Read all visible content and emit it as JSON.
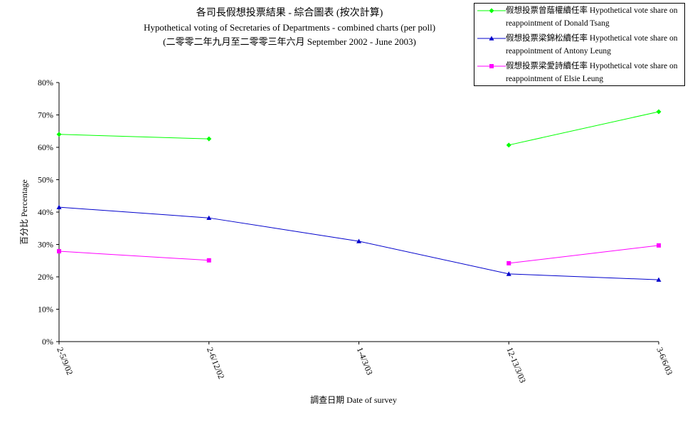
{
  "chart_data": {
    "type": "line",
    "title": "各司長假想投票結果 - 綜合圖表 (按次計算)",
    "subtitle": "Hypothetical voting of Secretaries of Departments - combined charts (per poll)",
    "subtitle2": "(二零零二年九月至二零零三年六月 September 2002 - June 2003)",
    "x_label": "調查日期 Date of survey",
    "y_label": "百分比 Percentage",
    "categories": [
      "2-5/9/02",
      "2-6/12/02",
      "1-4/3/03",
      "12-13/3/03",
      "3-6/6/03"
    ],
    "series": [
      {
        "name": "假想投票曾蔭權續任率 Hypothetical vote share on reappointment of Donald Tsang",
        "color": "#00ff00",
        "marker": "diamond",
        "values": [
          64.0,
          62.6,
          null,
          60.7,
          71.0
        ]
      },
      {
        "name": "假想投票梁錦松續任率 Hypothetical vote share on reappointment of Antony Leung",
        "color": "#0000cc",
        "marker": "triangle",
        "values": [
          41.5,
          38.2,
          31.0,
          20.9,
          19.1
        ]
      },
      {
        "name": "假想投票梁愛詩續任率 Hypothetical vote share on reappointment of Elsie Leung",
        "color": "#ff00ff",
        "marker": "square",
        "values": [
          27.9,
          25.1,
          null,
          24.2,
          29.7
        ]
      }
    ],
    "ylim": [
      0,
      80
    ],
    "yticks": [
      {
        "value": 0,
        "label": "0%"
      },
      {
        "value": 10,
        "label": "10%"
      },
      {
        "value": 20,
        "label": "20%"
      },
      {
        "value": 30,
        "label": "30%"
      },
      {
        "value": 40,
        "label": "40%"
      },
      {
        "value": 50,
        "label": "50%"
      },
      {
        "value": 60,
        "label": "60%"
      },
      {
        "value": 70,
        "label": "70%"
      },
      {
        "value": 80,
        "label": "80%"
      }
    ],
    "grid": false,
    "legend": "upper right"
  }
}
